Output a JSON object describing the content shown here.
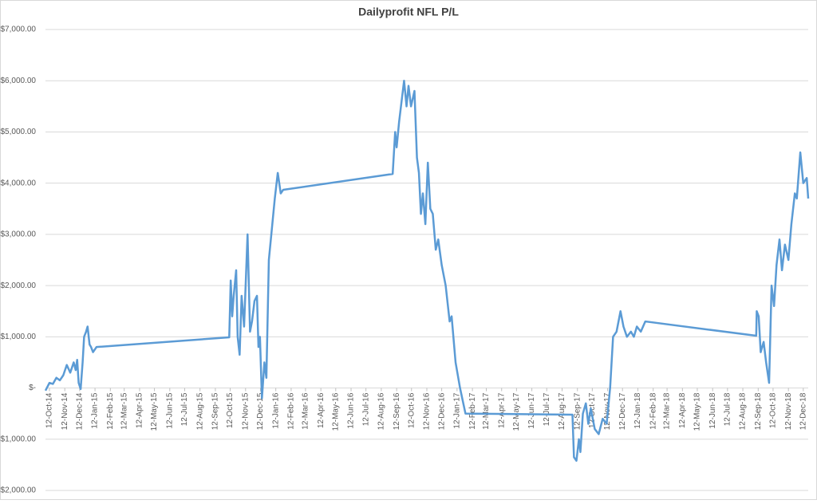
{
  "chart_data": {
    "type": "line",
    "title": "Dailyprofit NFL P/L",
    "color": "#5b9bd5",
    "grid": true,
    "xlim": [
      "2014-10-04",
      "2018-12-22"
    ],
    "ylim": [
      -2000,
      7000
    ],
    "yticks": [
      {
        "value": -2000,
        "label": "-$2,000.00"
      },
      {
        "value": -1000,
        "label": "-$1,000.00"
      },
      {
        "value": 0,
        "label": "$-"
      },
      {
        "value": 1000,
        "label": "$1,000.00"
      },
      {
        "value": 2000,
        "label": "$2,000.00"
      },
      {
        "value": 3000,
        "label": "$3,000.00"
      },
      {
        "value": 4000,
        "label": "$4,000.00"
      },
      {
        "value": 5000,
        "label": "$5,000.00"
      },
      {
        "value": 6000,
        "label": "$6,000.00"
      },
      {
        "value": 7000,
        "label": "$7,000.00"
      }
    ],
    "xticks": [
      {
        "value": "2014-10-12",
        "label": "12-Oct-14"
      },
      {
        "value": "2014-11-12",
        "label": "12-Nov-14"
      },
      {
        "value": "2014-12-12",
        "label": "12-Dec-14"
      },
      {
        "value": "2015-01-12",
        "label": "12-Jan-15"
      },
      {
        "value": "2015-02-12",
        "label": "12-Feb-15"
      },
      {
        "value": "2015-03-12",
        "label": "12-Mar-15"
      },
      {
        "value": "2015-04-12",
        "label": "12-Apr-15"
      },
      {
        "value": "2015-05-12",
        "label": "12-May-15"
      },
      {
        "value": "2015-06-12",
        "label": "12-Jun-15"
      },
      {
        "value": "2015-07-12",
        "label": "12-Jul-15"
      },
      {
        "value": "2015-08-12",
        "label": "12-Aug-15"
      },
      {
        "value": "2015-09-12",
        "label": "12-Sep-15"
      },
      {
        "value": "2015-10-12",
        "label": "12-Oct-15"
      },
      {
        "value": "2015-11-12",
        "label": "12-Nov-15"
      },
      {
        "value": "2015-12-12",
        "label": "12-Dec-15"
      },
      {
        "value": "2016-01-12",
        "label": "12-Jan-16"
      },
      {
        "value": "2016-02-12",
        "label": "12-Feb-16"
      },
      {
        "value": "2016-03-12",
        "label": "12-Mar-16"
      },
      {
        "value": "2016-04-12",
        "label": "12-Apr-16"
      },
      {
        "value": "2016-05-12",
        "label": "12-May-16"
      },
      {
        "value": "2016-06-12",
        "label": "12-Jun-16"
      },
      {
        "value": "2016-07-12",
        "label": "12-Jul-16"
      },
      {
        "value": "2016-08-12",
        "label": "12-Aug-16"
      },
      {
        "value": "2016-09-12",
        "label": "12-Sep-16"
      },
      {
        "value": "2016-10-12",
        "label": "12-Oct-16"
      },
      {
        "value": "2016-11-12",
        "label": "12-Nov-16"
      },
      {
        "value": "2016-12-12",
        "label": "12-Dec-16"
      },
      {
        "value": "2017-01-12",
        "label": "12-Jan-17"
      },
      {
        "value": "2017-02-12",
        "label": "12-Feb-17"
      },
      {
        "value": "2017-03-12",
        "label": "12-Mar-17"
      },
      {
        "value": "2017-04-12",
        "label": "12-Apr-17"
      },
      {
        "value": "2017-05-12",
        "label": "12-May-17"
      },
      {
        "value": "2017-06-12",
        "label": "12-Jun-17"
      },
      {
        "value": "2017-07-12",
        "label": "12-Jul-17"
      },
      {
        "value": "2017-08-12",
        "label": "12-Aug-17"
      },
      {
        "value": "2017-09-12",
        "label": "12-Sep-17"
      },
      {
        "value": "2017-10-12",
        "label": "12-Oct-17"
      },
      {
        "value": "2017-11-12",
        "label": "12-Nov-17"
      },
      {
        "value": "2017-12-12",
        "label": "12-Dec-17"
      },
      {
        "value": "2018-01-12",
        "label": "12-Jan-18"
      },
      {
        "value": "2018-02-12",
        "label": "12-Feb-18"
      },
      {
        "value": "2018-03-12",
        "label": "12-Mar-18"
      },
      {
        "value": "2018-04-12",
        "label": "12-Apr-18"
      },
      {
        "value": "2018-05-12",
        "label": "12-May-18"
      },
      {
        "value": "2018-06-12",
        "label": "12-Jun-18"
      },
      {
        "value": "2018-07-12",
        "label": "12-Jul-18"
      },
      {
        "value": "2018-08-12",
        "label": "12-Aug-18"
      },
      {
        "value": "2018-09-12",
        "label": "12-Sep-18"
      },
      {
        "value": "2018-10-12",
        "label": "12-Oct-18"
      },
      {
        "value": "2018-11-12",
        "label": "12-Nov-18"
      },
      {
        "value": "2018-12-12",
        "label": "12-Dec-18"
      }
    ],
    "x": [
      "2014-10-04",
      "2014-10-12",
      "2014-10-19",
      "2014-10-26",
      "2014-11-02",
      "2014-11-09",
      "2014-11-16",
      "2014-11-23",
      "2014-11-30",
      "2014-12-04",
      "2014-12-07",
      "2014-12-10",
      "2014-12-14",
      "2014-12-18",
      "2014-12-21",
      "2014-12-25",
      "2014-12-28",
      "2015-01-01",
      "2015-01-04",
      "2015-01-08",
      "2015-01-15",
      "2015-10-10",
      "2015-10-13",
      "2015-10-16",
      "2015-10-19",
      "2015-10-24",
      "2015-10-27",
      "2015-10-31",
      "2015-11-04",
      "2015-11-09",
      "2015-11-16",
      "2015-11-21",
      "2015-11-25",
      "2015-11-30",
      "2015-12-05",
      "2015-12-08",
      "2015-12-11",
      "2015-12-15",
      "2015-12-20",
      "2015-12-24",
      "2015-12-29",
      "2016-01-05",
      "2016-01-10",
      "2016-01-16",
      "2016-01-22",
      "2016-01-27",
      "2016-09-04",
      "2016-09-09",
      "2016-09-12",
      "2016-09-17",
      "2016-09-22",
      "2016-09-27",
      "2016-10-02",
      "2016-10-06",
      "2016-10-11",
      "2016-10-18",
      "2016-10-23",
      "2016-10-27",
      "2016-10-31",
      "2016-11-04",
      "2016-11-09",
      "2016-11-14",
      "2016-11-19",
      "2016-11-24",
      "2016-11-30",
      "2016-12-05",
      "2016-12-12",
      "2016-12-20",
      "2016-12-28",
      "2017-01-01",
      "2017-01-09",
      "2017-01-18",
      "2017-01-29",
      "2017-09-02",
      "2017-09-05",
      "2017-09-10",
      "2017-09-15",
      "2017-09-18",
      "2017-09-23",
      "2017-09-29",
      "2017-10-04",
      "2017-10-09",
      "2017-10-17",
      "2017-10-25",
      "2017-11-02",
      "2017-11-10",
      "2017-11-17",
      "2017-11-23",
      "2017-11-30",
      "2017-12-08",
      "2017-12-14",
      "2017-12-21",
      "2017-12-29",
      "2018-01-04",
      "2018-01-10",
      "2018-01-18",
      "2018-01-27",
      "2018-09-08",
      "2018-09-09",
      "2018-09-13",
      "2018-09-17",
      "2018-09-23",
      "2018-09-28",
      "2018-10-04",
      "2018-10-09",
      "2018-10-14",
      "2018-10-19",
      "2018-10-25",
      "2018-10-30",
      "2018-11-05",
      "2018-11-12",
      "2018-11-18",
      "2018-11-25",
      "2018-11-29",
      "2018-12-06",
      "2018-12-12",
      "2018-12-19",
      "2018-12-22"
    ],
    "values": [
      -50,
      100,
      80,
      200,
      150,
      250,
      450,
      300,
      500,
      350,
      550,
      100,
      -20,
      500,
      1000,
      1100,
      1200,
      850,
      800,
      700,
      800,
      990,
      2100,
      1400,
      1800,
      2300,
      1000,
      650,
      1800,
      1200,
      3000,
      1100,
      1300,
      1700,
      1800,
      800,
      1000,
      -200,
      500,
      200,
      2500,
      3200,
      3700,
      4200,
      3800,
      3870,
      4180,
      5000,
      4700,
      5200,
      5600,
      6000,
      5500,
      5900,
      5500,
      5800,
      4500,
      4200,
      3400,
      3800,
      3200,
      4400,
      3500,
      3400,
      2700,
      2900,
      2400,
      2000,
      1300,
      1400,
      500,
      0,
      -500,
      -520,
      -1350,
      -1420,
      -1000,
      -1250,
      -500,
      -300,
      -700,
      -400,
      -800,
      -900,
      -600,
      -700,
      0,
      1000,
      1100,
      1500,
      1200,
      1000,
      1100,
      1000,
      1200,
      1100,
      1300,
      1020,
      1500,
      1400,
      700,
      900,
      500,
      100,
      2000,
      1600,
      2400,
      2900,
      2300,
      2800,
      2500,
      3200,
      3800,
      3700,
      4600,
      4000,
      4100,
      3700
    ]
  }
}
